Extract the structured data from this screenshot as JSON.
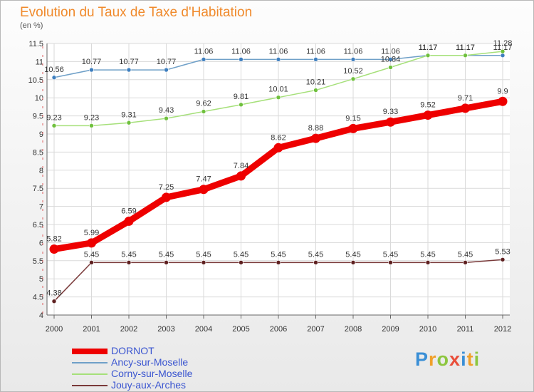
{
  "title": "Evolution du Taux de Taxe d'Habitation",
  "unit_label": "(en %)",
  "logo": {
    "letters": [
      {
        "ch": "P",
        "color": "#3a8fd6"
      },
      {
        "ch": "r",
        "color": "#f0a02a"
      },
      {
        "ch": "o",
        "color": "#8dc63f"
      },
      {
        "ch": "x",
        "color": "#e94e3a"
      },
      {
        "ch": "i",
        "color": "#3a8fd6"
      },
      {
        "ch": "t",
        "color": "#f0a02a"
      },
      {
        "ch": "i",
        "color": "#8dc63f"
      }
    ]
  },
  "chart_data": {
    "type": "line",
    "x": [
      "2000",
      "2001",
      "2002",
      "2003",
      "2004",
      "2005",
      "2006",
      "2007",
      "2008",
      "2009",
      "2010",
      "2011",
      "2012"
    ],
    "ylim": [
      4,
      11.5
    ],
    "yticks": [
      "4",
      "4.5",
      "5",
      "5.5",
      "6",
      "6.5",
      "7",
      "7.5",
      "8",
      "8.5",
      "9",
      "9.5",
      "10",
      "10.5",
      "11",
      "11.5"
    ],
    "grid": true,
    "legend_position": "bottom-left",
    "series": [
      {
        "name": "Ancy-sur-Moselle",
        "color": "#6fa0c8",
        "marker": "#3f7fbf",
        "values": [
          10.56,
          10.77,
          10.77,
          10.77,
          11.06,
          11.06,
          11.06,
          11.06,
          11.06,
          11.06,
          11.17,
          11.17,
          11.17
        ],
        "labels": [
          "10.56",
          "10.77",
          "10.77",
          "10.77",
          "11.06",
          "11.06",
          "11.06",
          "11.06",
          "11.06",
          "11.06",
          "11.17",
          "11.17",
          "11.17"
        ]
      },
      {
        "name": "Corny-sur-Moselle",
        "color": "#a6e07a",
        "marker": "#6fc03d",
        "values": [
          9.23,
          9.23,
          9.31,
          9.43,
          9.62,
          9.81,
          10.01,
          10.21,
          10.52,
          10.84,
          11.17,
          11.17,
          11.28
        ],
        "labels": [
          "9.23",
          "9.23",
          "9.31",
          "9.43",
          "9.62",
          "9.81",
          "10.01",
          "10.21",
          "10.52",
          "10.84",
          "11.17",
          "11.17",
          "11.28"
        ]
      },
      {
        "name": "Jouy-aux-Arches",
        "color": "#7a3a3a",
        "marker": "#5e2020",
        "values": [
          4.38,
          5.45,
          5.45,
          5.45,
          5.45,
          5.45,
          5.45,
          5.45,
          5.45,
          5.45,
          5.45,
          5.45,
          5.53
        ],
        "labels": [
          "4.38",
          "5.45",
          "5.45",
          "5.45",
          "5.45",
          "5.45",
          "5.45",
          "5.45",
          "5.45",
          "5.45",
          "5.45",
          "5.45",
          "5.53"
        ]
      },
      {
        "name": "DORNOT",
        "color": "#ee0000",
        "marker": "#ee0000",
        "values": [
          5.82,
          5.99,
          6.59,
          7.25,
          7.47,
          7.84,
          8.62,
          8.88,
          9.15,
          9.33,
          9.52,
          9.71,
          9.9
        ],
        "labels": [
          "5.82",
          "5.99",
          "6.59",
          "7.25",
          "7.47",
          "7.84",
          "8.62",
          "8.88",
          "9.15",
          "9.33",
          "9.52",
          "9.71",
          "9.9"
        ]
      }
    ],
    "legend": [
      {
        "name": "DORNOT",
        "color": "#ee0000",
        "text_color": "#3a55d0"
      },
      {
        "name": "Ancy-sur-Moselle",
        "color": "#6fa0c8",
        "text_color": "#3a55d0"
      },
      {
        "name": "Corny-sur-Moselle",
        "color": "#a6e07a",
        "text_color": "#3a55d0"
      },
      {
        "name": "Jouy-aux-Arches",
        "color": "#7a3a3a",
        "text_color": "#3a55d0"
      }
    ]
  }
}
